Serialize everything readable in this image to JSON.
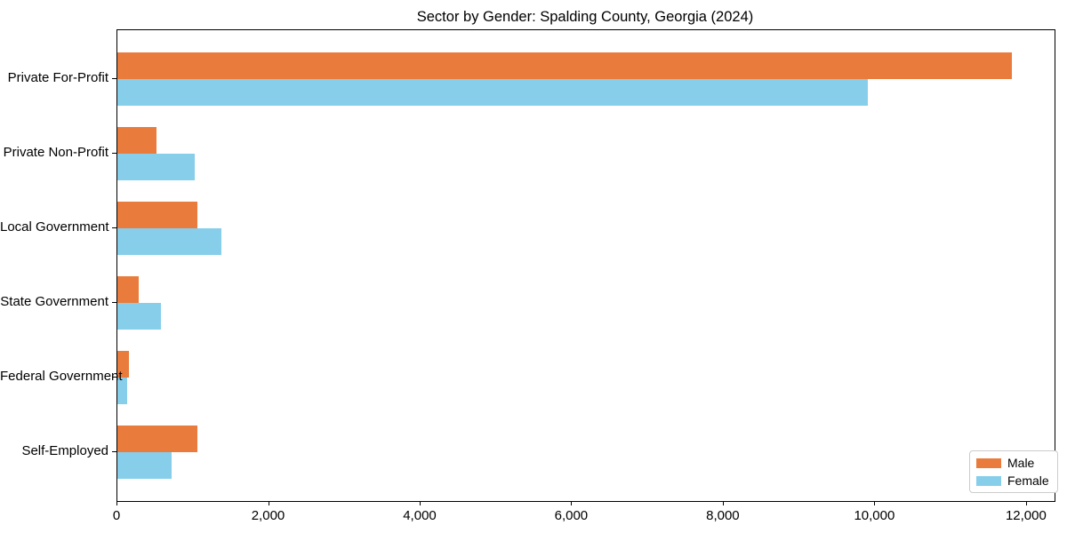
{
  "chart_data": {
    "type": "bar",
    "orientation": "horizontal",
    "title": "Sector by Gender: Spalding County, Georgia (2024)",
    "categories": [
      "Private For-Profit",
      "Private Non-Profit",
      "Local Government",
      "State Government",
      "Federal Government",
      "Self-Employed"
    ],
    "series": [
      {
        "name": "Male",
        "color": "#E97C3C",
        "values": [
          11800,
          520,
          1060,
          280,
          150,
          1060
        ]
      },
      {
        "name": "Female",
        "color": "#87CEEB",
        "values": [
          9900,
          1020,
          1370,
          580,
          130,
          720
        ]
      }
    ],
    "xlabel": "",
    "ylabel": "",
    "xlim": [
      0,
      12365
    ],
    "x_ticks": [
      0,
      2000,
      4000,
      6000,
      8000,
      10000,
      12000
    ],
    "x_tick_labels": [
      "0",
      "2,000",
      "4,000",
      "6,000",
      "8,000",
      "10,000",
      "12,000"
    ],
    "grid": false,
    "legend": {
      "position": "lower right",
      "entries": [
        "Male",
        "Female"
      ]
    }
  }
}
